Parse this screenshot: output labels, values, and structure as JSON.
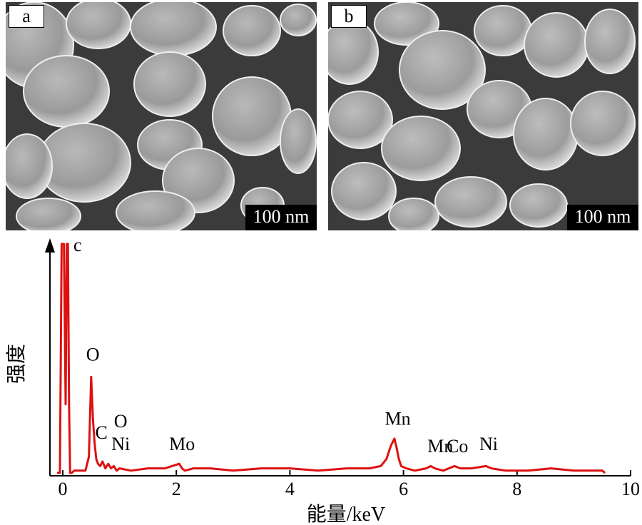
{
  "panels": [
    {
      "tag": "a",
      "scale_bar": "100 nm"
    },
    {
      "tag": "b",
      "scale_bar": "100 nm"
    }
  ],
  "chart_data": {
    "type": "line",
    "panel_tag": "c",
    "xlabel": "能量/keV",
    "ylabel": "强度",
    "xlim": [
      0,
      10
    ],
    "xticks": [
      0,
      2,
      4,
      6,
      8,
      10
    ],
    "x_tick_labels": [
      "0",
      "2",
      "4",
      "6",
      "8",
      "10"
    ],
    "line_color": "#dd1111",
    "series": [
      {
        "x": [
          -0.1,
          -0.05,
          -0.02,
          0.0,
          0.02,
          0.05,
          0.07,
          0.09,
          0.11,
          0.13,
          0.16,
          0.2,
          0.3,
          0.4,
          0.46,
          0.5,
          0.53,
          0.56,
          0.59,
          0.62,
          0.66,
          0.7,
          0.75,
          0.8,
          0.85,
          0.9,
          0.95,
          1.0,
          1.2,
          1.5,
          1.8,
          2.05,
          2.1,
          2.15,
          2.3,
          2.6,
          3.0,
          3.5,
          4.0,
          4.5,
          5.0,
          5.4,
          5.6,
          5.7,
          5.78,
          5.84,
          5.88,
          5.92,
          5.96,
          6.05,
          6.2,
          6.4,
          6.48,
          6.55,
          6.7,
          6.9,
          7.0,
          7.2,
          7.45,
          7.55,
          7.8,
          8.2,
          8.6,
          9.0,
          9.3,
          9.5,
          9.55
        ],
        "y": [
          0.0,
          0.0,
          1.0,
          1.0,
          1.0,
          0.3,
          1.0,
          1.0,
          0.3,
          0.0,
          0.0,
          0.01,
          0.01,
          0.01,
          0.07,
          0.42,
          0.24,
          0.13,
          0.06,
          0.04,
          0.03,
          0.05,
          0.02,
          0.04,
          0.02,
          0.03,
          0.01,
          0.02,
          0.01,
          0.02,
          0.02,
          0.04,
          0.02,
          0.01,
          0.02,
          0.02,
          0.01,
          0.02,
          0.02,
          0.01,
          0.02,
          0.02,
          0.03,
          0.06,
          0.12,
          0.15,
          0.11,
          0.06,
          0.03,
          0.02,
          0.01,
          0.02,
          0.03,
          0.02,
          0.01,
          0.03,
          0.02,
          0.02,
          0.03,
          0.02,
          0.01,
          0.01,
          0.02,
          0.01,
          0.01,
          0.01,
          0.0
        ]
      }
    ],
    "annotations": [
      {
        "text": "O",
        "x": 0.53,
        "y": 0.49
      },
      {
        "text": "C",
        "x": 0.68,
        "y": 0.15
      },
      {
        "text": "O",
        "x": 1.02,
        "y": 0.2
      },
      {
        "text": "Ni",
        "x": 1.02,
        "y": 0.1
      },
      {
        "text": "Mo",
        "x": 2.1,
        "y": 0.1
      },
      {
        "text": "Mn",
        "x": 5.9,
        "y": 0.21
      },
      {
        "text": "Mn",
        "x": 6.65,
        "y": 0.09
      },
      {
        "text": "Co",
        "x": 6.95,
        "y": 0.09
      },
      {
        "text": "Ni",
        "x": 7.5,
        "y": 0.1
      }
    ]
  }
}
